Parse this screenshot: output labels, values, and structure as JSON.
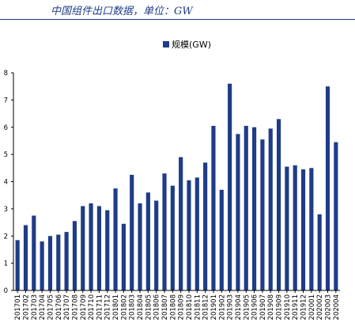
{
  "header": {
    "title": "中国组件出口数据，单位：GW"
  },
  "colors": {
    "accent": "#1f3c88",
    "bar": "#1f3c88",
    "axis": "#000000"
  },
  "chart_data": {
    "type": "bar",
    "title": "",
    "xlabel": "",
    "ylabel": "",
    "ylim": [
      0,
      8
    ],
    "yticks": [
      "0",
      "1",
      "2",
      "3",
      "4",
      "5",
      "6",
      "7",
      "8"
    ],
    "grid": false,
    "legend_position": "top-center",
    "categories": [
      "201701",
      "201702",
      "201703",
      "201704",
      "201705",
      "201706",
      "201707",
      "201708",
      "201709",
      "201710",
      "201711",
      "201712",
      "201801",
      "201802",
      "201803",
      "201804",
      "201805",
      "201806",
      "201807",
      "201808",
      "201809",
      "201810",
      "201811",
      "201812",
      "201901",
      "201902",
      "201903",
      "201904",
      "201905",
      "201906",
      "201907",
      "201908",
      "201909",
      "201910",
      "201911",
      "201912",
      "202001",
      "202002",
      "202003",
      "202004"
    ],
    "visible_tick_labels": [
      "201701",
      "201702",
      "201703",
      "201704",
      "201705",
      "201706",
      "201707",
      "201708",
      "201709",
      "201710",
      "201711",
      "201712",
      "201801",
      "201802",
      "201803",
      "201804",
      "201805",
      "201806",
      "201807",
      "201808",
      "201809",
      "201810",
      "201811",
      "201812",
      "201901",
      "201902",
      "201903",
      "201904",
      "201905",
      "201906",
      "201907",
      "201908",
      "201909",
      "201910",
      "201911",
      "201912",
      "202001",
      "202002",
      "202003",
      "202004"
    ],
    "series": [
      {
        "name": "规模(GW)",
        "values": [
          1.85,
          2.4,
          2.75,
          1.8,
          2.0,
          2.05,
          2.15,
          2.55,
          3.1,
          3.2,
          3.1,
          2.95,
          3.75,
          2.45,
          4.25,
          3.2,
          3.6,
          3.3,
          4.3,
          3.85,
          4.9,
          4.05,
          4.15,
          4.7,
          6.05,
          3.7,
          7.6,
          5.75,
          6.05,
          6.0,
          5.55,
          5.95,
          6.3,
          4.55,
          4.6,
          4.45,
          4.5,
          2.8,
          7.5,
          5.45
        ]
      }
    ]
  }
}
